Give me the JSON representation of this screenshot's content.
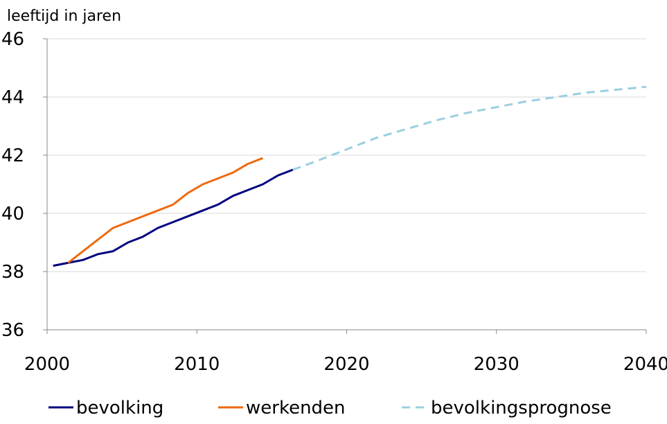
{
  "chart_data": {
    "type": "line",
    "title": "",
    "xlabel": "",
    "ylabel": "leeftijd in jaren",
    "xlim": [
      2000,
      2040
    ],
    "ylim": [
      36,
      46
    ],
    "x_ticks": [
      2000,
      2010,
      2020,
      2030,
      2040
    ],
    "y_ticks": [
      36,
      38,
      40,
      42,
      44,
      46
    ],
    "grid": true,
    "legend_position": "bottom",
    "series": [
      {
        "name": "bevolking",
        "color": "#00007f",
        "style": "solid",
        "x": [
          2000.4,
          2001.4,
          2002.4,
          2003.4,
          2004.4,
          2005.4,
          2006.4,
          2007.4,
          2008.4,
          2009.4,
          2010.4,
          2011.4,
          2012.4,
          2013.4,
          2014.4,
          2015.4,
          2016.4
        ],
        "y": [
          38.2,
          38.3,
          38.4,
          38.6,
          38.7,
          39.0,
          39.2,
          39.5,
          39.7,
          39.9,
          40.1,
          40.3,
          40.6,
          40.8,
          41.0,
          41.3,
          41.5
        ]
      },
      {
        "name": "werkenden",
        "color": "#ee6a0f",
        "style": "solid",
        "x": [
          2001.4,
          2002.4,
          2003.4,
          2004.4,
          2005.4,
          2006.4,
          2007.4,
          2008.4,
          2009.4,
          2010.4,
          2011.4,
          2012.4,
          2013.4,
          2014.4
        ],
        "y": [
          38.3,
          38.7,
          39.1,
          39.5,
          39.7,
          39.9,
          40.1,
          40.3,
          40.7,
          41.0,
          41.2,
          41.4,
          41.7,
          41.9
        ]
      },
      {
        "name": "bevolkingsprognose",
        "color": "#99cfe0",
        "style": "dashed",
        "x": [
          2016.4,
          2018,
          2020,
          2022,
          2024,
          2026,
          2028,
          2030,
          2032,
          2034,
          2036,
          2038,
          2040
        ],
        "y": [
          41.5,
          41.8,
          42.2,
          42.6,
          42.9,
          43.2,
          43.45,
          43.65,
          43.85,
          44.0,
          44.15,
          44.25,
          44.35
        ]
      }
    ]
  }
}
